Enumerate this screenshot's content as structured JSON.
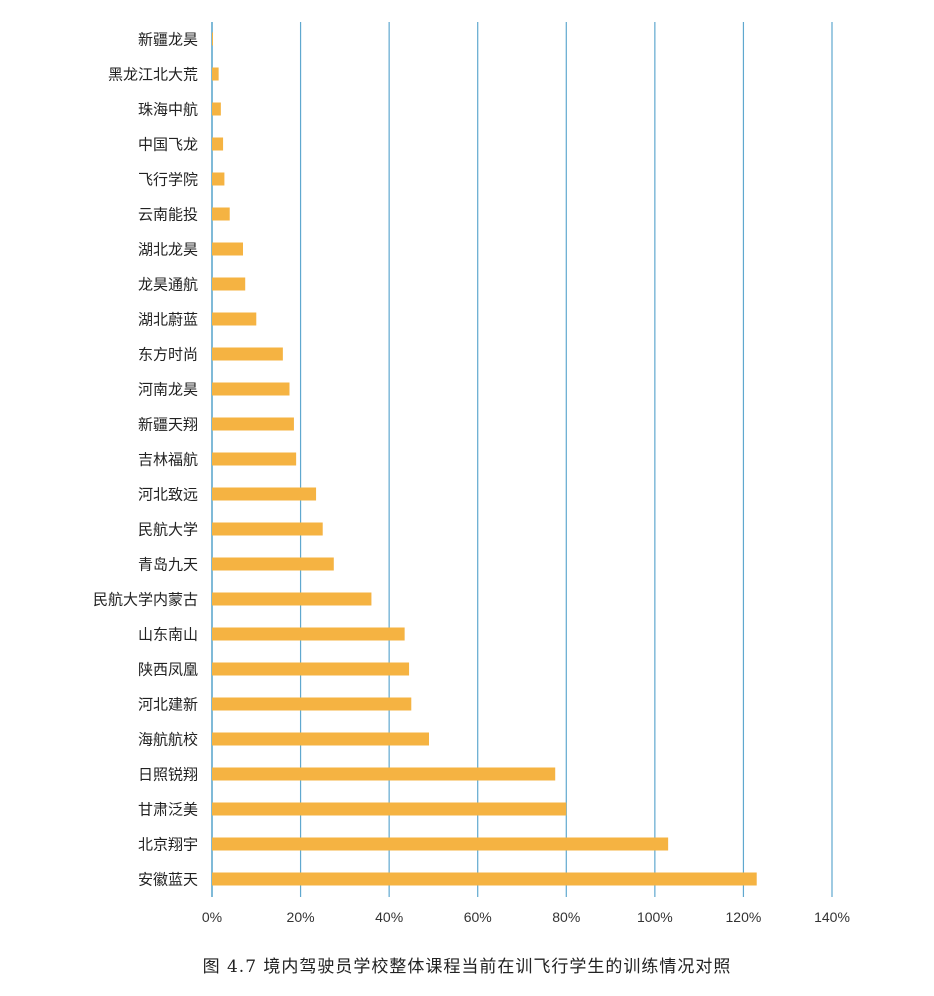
{
  "caption": "图 4.7    境内驾驶员学校整体课程当前在训飞行学生的训练情况对照",
  "colors": {
    "bar": "#F5B342",
    "grid": "#5FA8CF"
  },
  "chart_data": {
    "type": "bar",
    "orientation": "horizontal",
    "categories": [
      "新疆龙昊",
      "黑龙江北大荒",
      "珠海中航",
      "中国飞龙",
      "飞行学院",
      "云南能投",
      "湖北龙昊",
      "龙昊通航",
      "湖北蔚蓝",
      "东方时尚",
      "河南龙昊",
      "新疆天翔",
      "吉林福航",
      "河北致远",
      "民航大学",
      "青岛九天",
      "民航大学内蒙古",
      "山东南山",
      "陕西凤凰",
      "河北建新",
      "海航航校",
      "日照锐翔",
      "甘肃泛美",
      "北京翔宇",
      "安徽蓝天"
    ],
    "values": [
      0.2,
      1.5,
      2,
      2.5,
      2.8,
      4,
      7,
      7.5,
      10,
      16,
      17.5,
      18.5,
      19,
      23.5,
      25,
      27.5,
      36,
      43.5,
      44.5,
      45,
      49,
      77.5,
      80,
      103,
      123
    ],
    "xlim": [
      0,
      140
    ],
    "xticks": [
      "0%",
      "20%",
      "40%",
      "60%",
      "80%",
      "100%",
      "120%",
      "140%"
    ],
    "xtick_values": [
      0,
      20,
      40,
      60,
      80,
      100,
      120,
      140
    ],
    "grid": true
  }
}
